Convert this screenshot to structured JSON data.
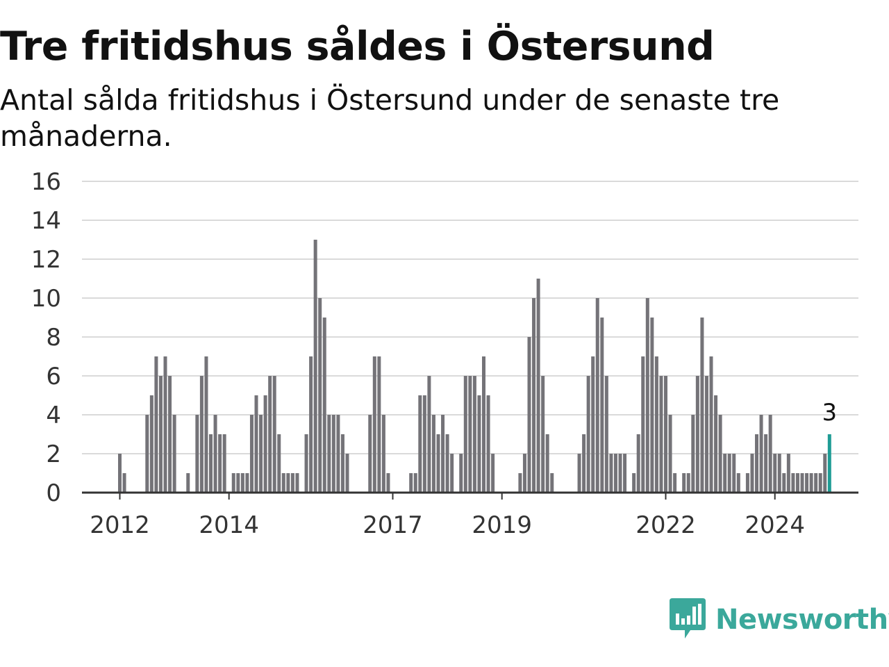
{
  "header": {
    "title": "Tre fritidshus såldes i Östersund",
    "subtitle": "Antal sålda fritidshus i Östersund under de senaste tre månaderna."
  },
  "colors": {
    "bar": "#747378",
    "highlight": "#1f9c95",
    "grid": "#dadada",
    "axis": "#333333",
    "brand": "#3ba89b"
  },
  "chart_data": {
    "type": "bar",
    "title": "Tre fritidshus såldes i Östersund",
    "subtitle": "Antal sålda fritidshus i Östersund under de senaste tre månaderna.",
    "xlabel": "",
    "ylabel": "",
    "ylim": [
      0,
      16
    ],
    "yticks": [
      0,
      2,
      4,
      6,
      8,
      10,
      12,
      14,
      16
    ],
    "grid": true,
    "legend": "none",
    "x_start": "2012-01",
    "frequency": "monthly",
    "xtick_labels": [
      {
        "label": "2012",
        "date": "2012-01"
      },
      {
        "label": "2014",
        "date": "2014-01"
      },
      {
        "label": "2017",
        "date": "2017-01"
      },
      {
        "label": "2019",
        "date": "2019-01"
      },
      {
        "label": "2022",
        "date": "2022-01"
      },
      {
        "label": "2024",
        "date": "2024-01"
      }
    ],
    "values": [
      2,
      1,
      0,
      0,
      0,
      0,
      4,
      5,
      7,
      6,
      7,
      6,
      4,
      0,
      0,
      1,
      0,
      4,
      6,
      7,
      3,
      4,
      3,
      3,
      0,
      1,
      1,
      1,
      1,
      4,
      5,
      4,
      5,
      6,
      6,
      3,
      1,
      1,
      1,
      1,
      0,
      3,
      7,
      13,
      10,
      9,
      4,
      4,
      4,
      3,
      2,
      0,
      0,
      0,
      0,
      4,
      7,
      7,
      4,
      1,
      0,
      0,
      0,
      0,
      1,
      1,
      5,
      5,
      6,
      4,
      3,
      4,
      3,
      2,
      0,
      2,
      6,
      6,
      6,
      5,
      7,
      5,
      2,
      0,
      0,
      0,
      0,
      0,
      1,
      2,
      8,
      10,
      11,
      6,
      3,
      1,
      0,
      0,
      0,
      0,
      0,
      2,
      3,
      6,
      7,
      10,
      9,
      6,
      2,
      2,
      2,
      2,
      0,
      1,
      3,
      7,
      10,
      9,
      7,
      6,
      6,
      4,
      1,
      0,
      1,
      1,
      4,
      6,
      9,
      6,
      7,
      5,
      4,
      2,
      2,
      2,
      1,
      0,
      1,
      2,
      3,
      4,
      3,
      4,
      2,
      2,
      1,
      2,
      1,
      1,
      1,
      1,
      1,
      1,
      1,
      2,
      3
    ],
    "highlight_last": true,
    "last_value_label": "3"
  },
  "brand": {
    "name": "Newsworthy",
    "icon": "newsworthy-logo-icon"
  }
}
